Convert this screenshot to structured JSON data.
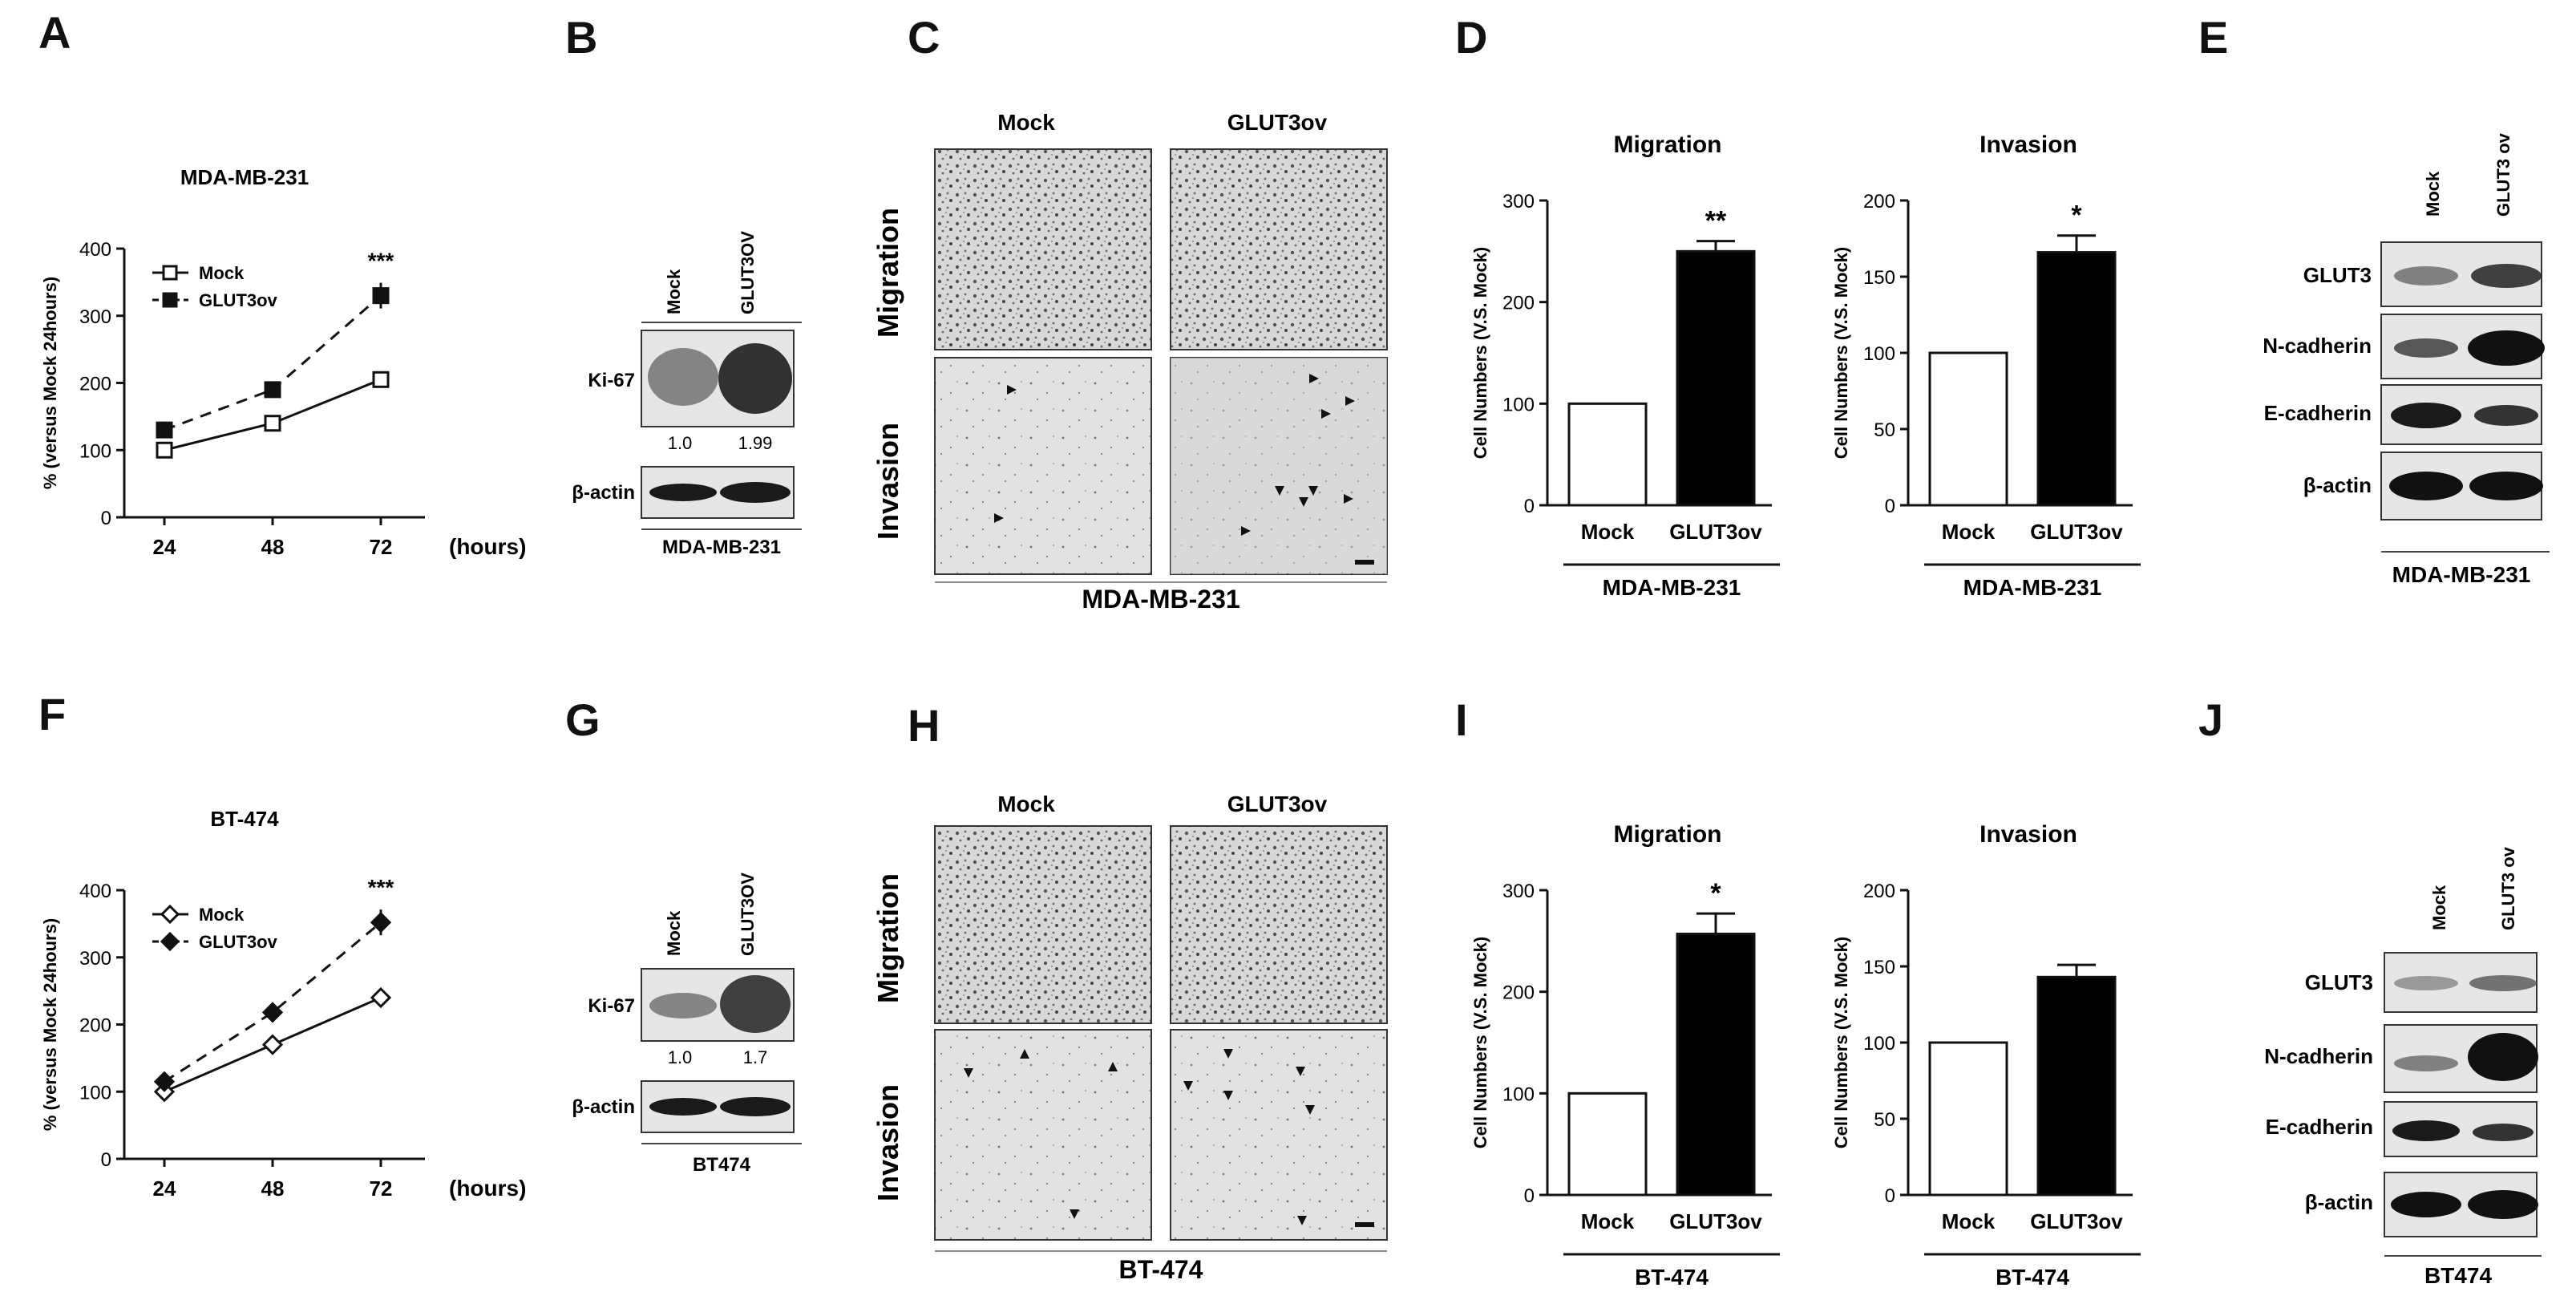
{
  "letters": [
    "A",
    "B",
    "C",
    "D",
    "E",
    "F",
    "G",
    "H",
    "I",
    "J"
  ],
  "proliferation": [
    {
      "title": "MDA-MB-231",
      "ylabel": "% (versus Mock 24hours)",
      "xlabel": "(hours)",
      "x": [
        24,
        48,
        72
      ],
      "yticks": [
        0,
        100,
        200,
        300,
        400
      ],
      "sig": "***",
      "series": [
        {
          "name": "Mock",
          "values": [
            100,
            140,
            205
          ]
        },
        {
          "name": "GLUT3ov",
          "values": [
            130,
            190,
            330
          ]
        }
      ]
    },
    {
      "title": "BT-474",
      "ylabel": "% (versus Mock 24hours)",
      "xlabel": "(hours)",
      "x": [
        24,
        48,
        72
      ],
      "yticks": [
        0,
        100,
        200,
        300,
        400
      ],
      "sig": "***",
      "series": [
        {
          "name": "Mock",
          "values": [
            100,
            170,
            240
          ]
        },
        {
          "name": "GLUT3ov",
          "values": [
            115,
            218,
            352
          ]
        }
      ]
    }
  ],
  "ki67_blots": [
    {
      "lanes": [
        "Mock",
        "GLUT3OV"
      ],
      "rows": [
        "Ki-67",
        "β-actin"
      ],
      "quant": [
        "1.0",
        "1.99"
      ],
      "cell_line": "MDA-MB-231"
    },
    {
      "lanes": [
        "Mock",
        "GLUT3OV"
      ],
      "rows": [
        "Ki-67",
        "β-actin"
      ],
      "quant": [
        "1.0",
        "1.7"
      ],
      "cell_line": "BT474"
    }
  ],
  "micrographs": [
    {
      "cols": [
        "Mock",
        "GLUT3ov"
      ],
      "rows": [
        "Migration",
        "Invasion"
      ],
      "cell_line": "MDA-MB-231"
    },
    {
      "cols": [
        "Mock",
        "GLUT3ov"
      ],
      "rows": [
        "Migration",
        "Invasion"
      ],
      "cell_line": "BT-474"
    }
  ],
  "chart_data": [
    {
      "type": "bar",
      "title": "Migration",
      "ylabel": "Cell Numbers (V.S. Mock)",
      "categories": [
        "Mock",
        "GLUT3ov"
      ],
      "values": [
        100,
        250
      ],
      "errors": [
        0,
        10
      ],
      "ylim": [
        0,
        300
      ],
      "yticks": [
        0,
        100,
        200,
        300
      ],
      "sig": [
        "",
        "**"
      ],
      "cell_line": "MDA-MB-231"
    },
    {
      "type": "bar",
      "title": "Invasion",
      "ylabel": "Cell Numbers (V.S. Mock)",
      "categories": [
        "Mock",
        "GLUT3ov"
      ],
      "values": [
        100,
        166
      ],
      "errors": [
        0,
        11
      ],
      "ylim": [
        0,
        200
      ],
      "yticks": [
        0,
        50,
        100,
        150,
        200
      ],
      "sig": [
        "",
        "*"
      ],
      "cell_line": "MDA-MB-231"
    },
    {
      "type": "bar",
      "title": "Migration",
      "ylabel": "Cell Numbers (V.S. Mock)",
      "categories": [
        "Mock",
        "GLUT3ov"
      ],
      "values": [
        100,
        257
      ],
      "errors": [
        0,
        20
      ],
      "ylim": [
        0,
        300
      ],
      "yticks": [
        0,
        100,
        200,
        300
      ],
      "sig": [
        "",
        "*"
      ],
      "cell_line": "BT-474"
    },
    {
      "type": "bar",
      "title": "Invasion",
      "ylabel": "Cell Numbers (V.S. Mock)",
      "categories": [
        "Mock",
        "GLUT3ov"
      ],
      "values": [
        100,
        143
      ],
      "errors": [
        0,
        8
      ],
      "ylim": [
        0,
        200
      ],
      "yticks": [
        0,
        50,
        100,
        150,
        200
      ],
      "sig": [
        "",
        ""
      ],
      "cell_line": "BT-474"
    }
  ],
  "emt_blots": [
    {
      "lanes": [
        "Mock",
        "GLUT3 ov"
      ],
      "rows": [
        "GLUT3",
        "N-cadherin",
        "E-cadherin",
        "β-actin"
      ],
      "cell_line": "MDA-MB-231"
    },
    {
      "lanes": [
        "Mock",
        "GLUT3 ov"
      ],
      "rows": [
        "GLUT3",
        "N-cadherin",
        "E-cadherin",
        "β-actin"
      ],
      "cell_line": "BT474"
    }
  ],
  "colors": {
    "ink": "#111111",
    "blot_bg": "#e6e6e6",
    "band": "#1a1a1a"
  }
}
